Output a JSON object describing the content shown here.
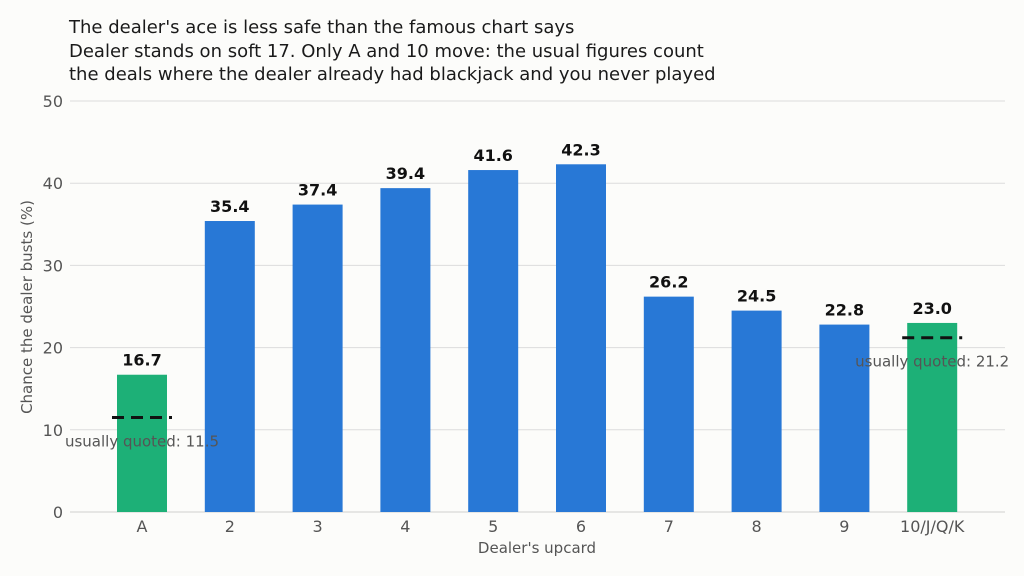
{
  "chart_data": {
    "type": "bar",
    "title_lines": [
      "The dealer's ace is less safe than the famous chart says",
      "Dealer stands on soft 17. Only A and 10 move: the usual figures count",
      "the deals where the dealer already had blackjack and you never played"
    ],
    "xlabel": "Dealer's upcard",
    "ylabel": "Chance the dealer busts (%)",
    "ylim": [
      0,
      50
    ],
    "yticks": [
      0,
      10,
      20,
      30,
      40,
      50
    ],
    "grid": true,
    "categories": [
      "A",
      "2",
      "3",
      "4",
      "5",
      "6",
      "7",
      "8",
      "9",
      "10/J/Q/K"
    ],
    "values": [
      16.7,
      35.4,
      37.4,
      39.4,
      41.6,
      42.3,
      26.2,
      24.5,
      22.8,
      23.0
    ],
    "value_labels": [
      "16.7",
      "35.4",
      "37.4",
      "39.4",
      "41.6",
      "42.3",
      "26.2",
      "24.5",
      "22.8",
      "23.0"
    ],
    "highlighted": [
      "A",
      "10/J/Q/K"
    ],
    "colors": {
      "default": "#2878d6",
      "highlight": "#1db077",
      "reference": "#111111"
    },
    "annotations": [
      {
        "category": "A",
        "value": 11.5,
        "text": "usually quoted: 11.5"
      },
      {
        "category": "10/J/Q/K",
        "value": 21.2,
        "text": "usually quoted: 21.2"
      }
    ]
  }
}
